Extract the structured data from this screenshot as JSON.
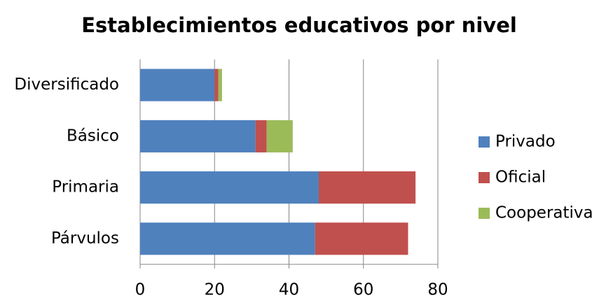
{
  "chart_data": {
    "type": "stacked_barh",
    "title": "Establecimientos educativos por nivel",
    "categories": [
      "Diversificado",
      "Básico",
      "Primaria",
      "Párvulos"
    ],
    "series": [
      {
        "name": "Privado",
        "color": "#4f81bd",
        "values": [
          20,
          31,
          48,
          47
        ]
      },
      {
        "name": "Oficial",
        "color": "#c0504d",
        "values": [
          1,
          3,
          26,
          25
        ]
      },
      {
        "name": "Cooperativa",
        "color": "#9bbb59",
        "values": [
          1,
          7,
          0,
          0
        ]
      }
    ],
    "xlim": [
      0,
      80
    ],
    "xticks": [
      0,
      20,
      40,
      60,
      80
    ],
    "grid": true,
    "legend": "right"
  }
}
